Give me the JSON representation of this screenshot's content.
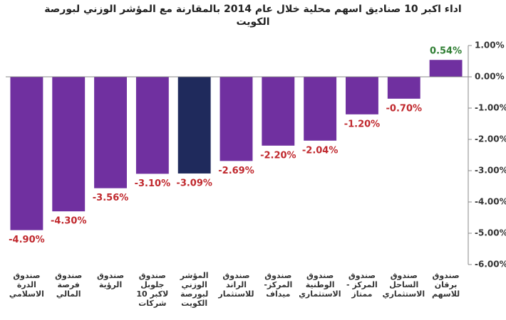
{
  "chart_data": {
    "type": "bar",
    "title": "اداء اكبر 10 صناديق اسهم محلية خلال عام 2014 بالمقارنة مع المؤشر الوزني لبورصة الكويت",
    "categories": [
      "صندوق الدرة الاسلامي",
      "صندوق فرصة المالي",
      "صندوق الرؤية",
      "صندوق جلوبل لاكبر 10 شركات",
      "المؤشر الوزني لبورصة الكويت",
      "صندوق الراند للاستثمار",
      "صندوق المركز- ميداف",
      "صندوق الوطنية الاستثماري",
      "صندوق المركز - ممتاز",
      "صندوق الساحل الاستثماري",
      "صندوق برقان للاسهم"
    ],
    "values": [
      -4.9,
      -4.3,
      -3.56,
      -3.1,
      -3.09,
      -2.69,
      -2.2,
      -2.04,
      -1.2,
      -0.7,
      0.54
    ],
    "value_labels": [
      "-4.90%",
      "-4.30%",
      "-3.56%",
      "-3.10%",
      "-3.09%",
      "-2.69%",
      "-2.20%",
      "-2.04%",
      "-1.20%",
      "-0.70%",
      "0.54%"
    ],
    "colors": [
      "#7030a0",
      "#7030a0",
      "#7030a0",
      "#7030a0",
      "#1f2a5c",
      "#7030a0",
      "#7030a0",
      "#7030a0",
      "#7030a0",
      "#7030a0",
      "#7030a0"
    ],
    "value_label_colors": {
      "negative": "#c0282d",
      "positive": "#2e7d32"
    },
    "ylim": [
      -6,
      1
    ],
    "yticks": [
      {
        "value": 1,
        "label": "1.00%"
      },
      {
        "value": 0,
        "label": "0.00%"
      },
      {
        "value": -1,
        "label": "-1.00%"
      },
      {
        "value": -2,
        "label": "-2.00%"
      },
      {
        "value": -3,
        "label": "-3.00%"
      },
      {
        "value": -4,
        "label": "-4.00%"
      },
      {
        "value": -5,
        "label": "-5.00%"
      },
      {
        "value": -6,
        "label": "-6.00%"
      }
    ],
    "y_axis_side": "right"
  }
}
